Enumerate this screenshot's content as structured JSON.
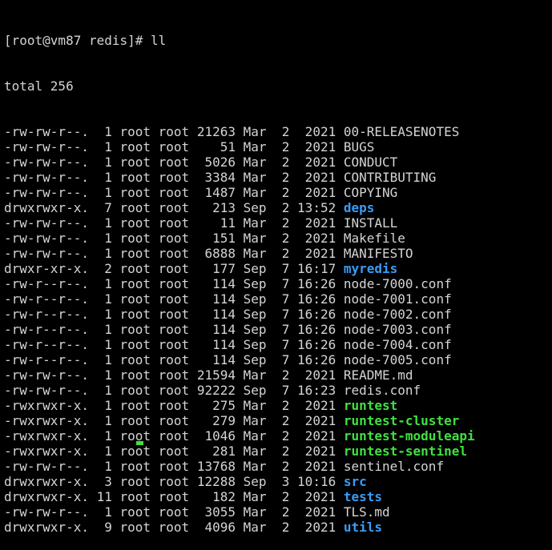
{
  "terminal": {
    "prompt": "[root@vm87 redis]# ll",
    "total": "total 256",
    "colors": {
      "background": "#000000",
      "text": "#d4d4d4",
      "directory": "#3a9cf5",
      "executable": "#3fe23f"
    },
    "entries": [
      {
        "info": "-rw-rw-r--.  1 root root 21263 Mar  2  2021 ",
        "name": "00-RELEASENOTES",
        "type": "file"
      },
      {
        "info": "-rw-rw-r--.  1 root root    51 Mar  2  2021 ",
        "name": "BUGS",
        "type": "file"
      },
      {
        "info": "-rw-rw-r--.  1 root root  5026 Mar  2  2021 ",
        "name": "CONDUCT",
        "type": "file"
      },
      {
        "info": "-rw-rw-r--.  1 root root  3384 Mar  2  2021 ",
        "name": "CONTRIBUTING",
        "type": "file"
      },
      {
        "info": "-rw-rw-r--.  1 root root  1487 Mar  2  2021 ",
        "name": "COPYING",
        "type": "file"
      },
      {
        "info": "drwxrwxr-x.  7 root root   213 Sep  2 13:52 ",
        "name": "deps",
        "type": "dir"
      },
      {
        "info": "-rw-rw-r--.  1 root root    11 Mar  2  2021 ",
        "name": "INSTALL",
        "type": "file"
      },
      {
        "info": "-rw-rw-r--.  1 root root   151 Mar  2  2021 ",
        "name": "Makefile",
        "type": "file"
      },
      {
        "info": "-rw-rw-r--.  1 root root  6888 Mar  2  2021 ",
        "name": "MANIFESTO",
        "type": "file"
      },
      {
        "info": "drwxr-xr-x.  2 root root   177 Sep  7 16:17 ",
        "name": "myredis",
        "type": "dir"
      },
      {
        "info": "-rw-r--r--.  1 root root   114 Sep  7 16:26 ",
        "name": "node-7000.conf",
        "type": "file"
      },
      {
        "info": "-rw-r--r--.  1 root root   114 Sep  7 16:26 ",
        "name": "node-7001.conf",
        "type": "file"
      },
      {
        "info": "-rw-r--r--.  1 root root   114 Sep  7 16:26 ",
        "name": "node-7002.conf",
        "type": "file"
      },
      {
        "info": "-rw-r--r--.  1 root root   114 Sep  7 16:26 ",
        "name": "node-7003.conf",
        "type": "file"
      },
      {
        "info": "-rw-r--r--.  1 root root   114 Sep  7 16:26 ",
        "name": "node-7004.conf",
        "type": "file"
      },
      {
        "info": "-rw-r--r--.  1 root root   114 Sep  7 16:26 ",
        "name": "node-7005.conf",
        "type": "file"
      },
      {
        "info": "-rw-rw-r--.  1 root root 21594 Mar  2  2021 ",
        "name": "README.md",
        "type": "file"
      },
      {
        "info": "-rw-rw-r--.  1 root root 92222 Sep  7 16:23 ",
        "name": "redis.conf",
        "type": "file"
      },
      {
        "info": "-rwxrwxr-x.  1 root root   275 Mar  2  2021 ",
        "name": "runtest",
        "type": "exec"
      },
      {
        "info": "-rwxrwxr-x.  1 root root   279 Mar  2  2021 ",
        "name": "runtest-cluster",
        "type": "exec"
      },
      {
        "info": "-rwxrwxr-x.  1 root root  1046 Mar  2  2021 ",
        "name": "runtest-moduleapi",
        "type": "exec"
      },
      {
        "info": "-rwxrwxr-x.  1 root root   281 Mar  2  2021 ",
        "name": "runtest-sentinel",
        "type": "exec"
      },
      {
        "info": "-rw-rw-r--.  1 root root 13768 Mar  2  2021 ",
        "name": "sentinel.conf",
        "type": "file"
      },
      {
        "info": "drwxrwxr-x.  3 root root 12288 Sep  3 10:16 ",
        "name": "src",
        "type": "dir"
      },
      {
        "info": "drwxrwxr-x. 11 root root   182 Mar  2  2021 ",
        "name": "tests",
        "type": "dir"
      },
      {
        "info": "-rw-rw-r--.  1 root root  3055 Mar  2  2021 ",
        "name": "TLS.md",
        "type": "file"
      },
      {
        "info": "drwxrwxr-x.  9 root root  4096 Mar  2  2021 ",
        "name": "utils",
        "type": "dir"
      }
    ]
  }
}
